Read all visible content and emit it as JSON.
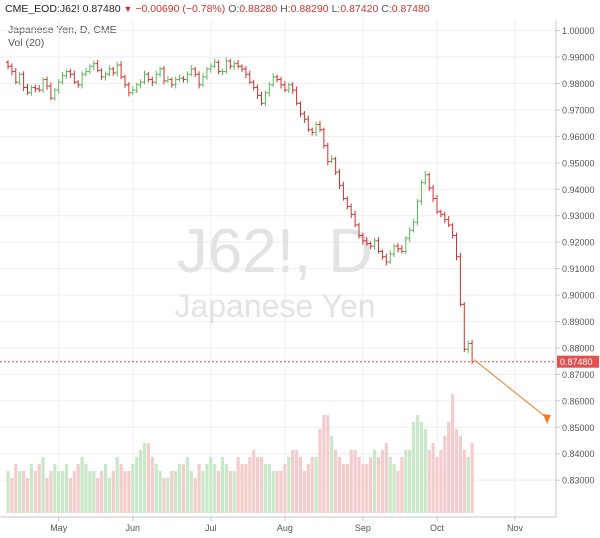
{
  "header": {
    "symbol": "CME_EOD:J62!",
    "last": "0.87480",
    "change": "−0.00690 (−0.78%)",
    "open_label": "O:",
    "open": "0.88280",
    "high_label": "H:",
    "high": "0.88290",
    "low_label": "L:",
    "low": "0.87420",
    "close_label": "C:",
    "close": "0.87480"
  },
  "legend": {
    "series_title": "Japanese Yen, D, CME",
    "volume_title": "Vol (20)"
  },
  "watermark": {
    "line1": "J62!, D",
    "line2": "Japanese Yen"
  },
  "colors": {
    "up": "#5cb85c",
    "down": "#d1342f",
    "up_volume": "#c9e8c9",
    "down_volume": "#f3cccc",
    "price_line": "#e05050",
    "arrow": "#f07c2a",
    "grid": "#eeeeee"
  },
  "last_price_label": "0.87480",
  "chart_data": {
    "type": "candlestick",
    "title": "Japanese Yen, D, CME",
    "ylim": [
      0.8225,
      1.0025
    ],
    "y_ticks": [
      "1.00000",
      "0.99000",
      "0.98000",
      "0.97000",
      "0.96000",
      "0.95000",
      "0.94000",
      "0.93000",
      "0.92000",
      "0.91000",
      "0.90000",
      "0.89000",
      "0.88000",
      "0.87000",
      "0.86000",
      "0.85000",
      "0.84000",
      "0.83000"
    ],
    "x_tick_labels": [
      "May",
      "Jun",
      "Jul",
      "Aug",
      "Sep",
      "Oct",
      "Nov"
    ],
    "x_tick_index": [
      13,
      32,
      52,
      71,
      91,
      110,
      130
    ],
    "last_price": 0.8748,
    "closes": [
      0.9865,
      0.9845,
      0.9805,
      0.9835,
      0.9785,
      0.9765,
      0.9785,
      0.978,
      0.9775,
      0.9815,
      0.979,
      0.9745,
      0.9775,
      0.9805,
      0.983,
      0.9845,
      0.9835,
      0.9805,
      0.9795,
      0.9835,
      0.9845,
      0.9865,
      0.9875,
      0.985,
      0.9825,
      0.9835,
      0.9855,
      0.984,
      0.987,
      0.9825,
      0.9795,
      0.9765,
      0.9775,
      0.9795,
      0.9805,
      0.9835,
      0.9815,
      0.9805,
      0.9835,
      0.9855,
      0.981,
      0.9815,
      0.9795,
      0.9815,
      0.982,
      0.9815,
      0.9835,
      0.9855,
      0.9835,
      0.9795,
      0.9825,
      0.9855,
      0.9865,
      0.988,
      0.9845,
      0.9845,
      0.9885,
      0.9865,
      0.9875,
      0.9865,
      0.9855,
      0.9835,
      0.9805,
      0.9785,
      0.9755,
      0.9725,
      0.9765,
      0.9795,
      0.9825,
      0.9815,
      0.9795,
      0.9775,
      0.9795,
      0.9775,
      0.9725,
      0.9685,
      0.9665,
      0.9625,
      0.9615,
      0.9645,
      0.9625,
      0.9565,
      0.9505,
      0.9515,
      0.9465,
      0.9415,
      0.9365,
      0.9335,
      0.9305,
      0.9265,
      0.9225,
      0.9205,
      0.9195,
      0.9185,
      0.9205,
      0.9165,
      0.9145,
      0.9125,
      0.9155,
      0.9185,
      0.9175,
      0.9165,
      0.9215,
      0.9245,
      0.9275,
      0.9355,
      0.9425,
      0.9455,
      0.9405,
      0.9365,
      0.9315,
      0.9305,
      0.9285,
      0.9265,
      0.9225,
      0.9145,
      0.8965,
      0.8795,
      0.8817,
      0.8748
    ],
    "volume": [
      6,
      5,
      7,
      6,
      6,
      5,
      7,
      6,
      7,
      8,
      5,
      6,
      7,
      6,
      6,
      7,
      5,
      6,
      7,
      8,
      7,
      6,
      6,
      5,
      6,
      7,
      5,
      6,
      8,
      7,
      6,
      6,
      7,
      8,
      9,
      10,
      10,
      8,
      7,
      6,
      5,
      5,
      6,
      6,
      7,
      7,
      8,
      6,
      5,
      7,
      6,
      7,
      8,
      7,
      6,
      8,
      7,
      6,
      6,
      8,
      7,
      7,
      8,
      9,
      8,
      8,
      7,
      7,
      6,
      6,
      6,
      7,
      8,
      9,
      9,
      8,
      6,
      7,
      8,
      8,
      12,
      14,
      14,
      11,
      9,
      8,
      7,
      7,
      9,
      9,
      8,
      7,
      7,
      8,
      9,
      8,
      9,
      10,
      8,
      7,
      6,
      8,
      9,
      9,
      13,
      14,
      13,
      12,
      9,
      10,
      8,
      9,
      11,
      13,
      17,
      12,
      11,
      9,
      8,
      10
    ]
  }
}
